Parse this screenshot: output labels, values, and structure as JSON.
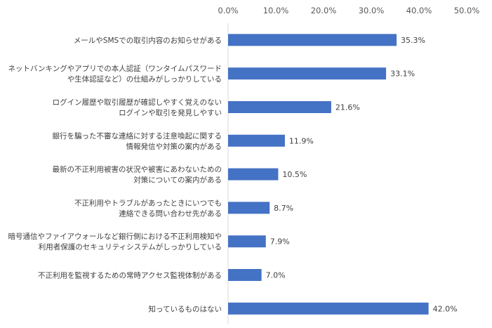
{
  "chart_data": {
    "type": "bar",
    "orientation": "horizontal",
    "title": "",
    "xlabel": "",
    "ylabel": "",
    "xlim": [
      0,
      50
    ],
    "x_ticks": [
      "0.0%",
      "10.0%",
      "20.0%",
      "30.0%",
      "40.0%",
      "50.0%"
    ],
    "x_axis_position": "top",
    "grid": false,
    "legend": "none",
    "bar_color": "#4472C4",
    "categories": [
      [
        "メールやSMSでの取引内容のお知らせがある"
      ],
      [
        "ネットバンキングやアプリでの本人認証（ワンタイムパスワード",
        "や生体認証など）の仕組みがしっかりしている"
      ],
      [
        "ログイン履歴や取引履歴が確認しやすく覚えのない",
        "ログインや取引を発見しやすい"
      ],
      [
        "銀行を騙った不審な連絡に対する注意喚起に関する",
        "情報発信や対策の案内がある"
      ],
      [
        "最新の不正利用被害の状況や被害にあわないための",
        "対策についての案内がある"
      ],
      [
        "不正利用やトラブルがあったときにいつでも",
        "連絡できる問い合わせ先がある"
      ],
      [
        "暗号通信やファイアウォールなど銀行側における不正利用検知や",
        "利用者保護のセキュリティシステムがしっかりしている"
      ],
      [
        "不正利用を監視するための常時アクセス監視体制がある"
      ],
      [
        "知っているものはない"
      ]
    ],
    "values": [
      35.3,
      33.1,
      21.6,
      11.9,
      10.5,
      8.7,
      7.9,
      7.0,
      42.0
    ],
    "value_labels": [
      "35.3%",
      "33.1%",
      "21.6%",
      "11.9%",
      "10.5%",
      "8.7%",
      "7.9%",
      "7.0%",
      "42.0%"
    ]
  }
}
